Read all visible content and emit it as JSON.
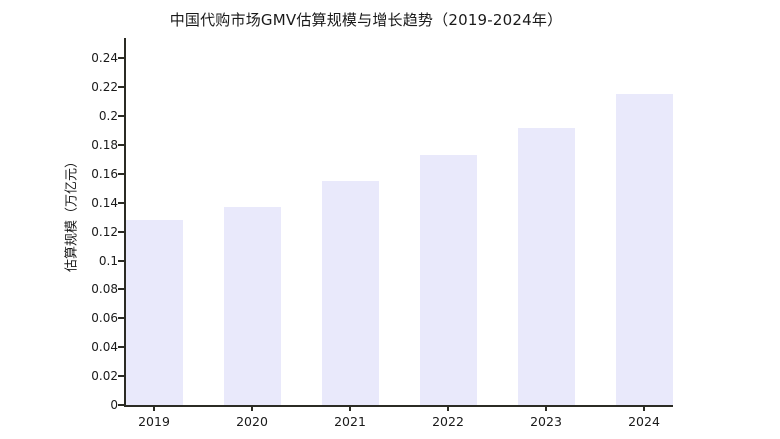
{
  "chart_data": {
    "type": "bar",
    "title": "中国代购市场GMV估算规模与增长趋势（2019-2024年）",
    "ylabel": "估算规模（万亿元）",
    "xlabel": "",
    "categories": [
      "2019",
      "2020",
      "2021",
      "2022",
      "2023",
      "2024"
    ],
    "values": [
      0.128,
      0.137,
      0.155,
      0.173,
      0.192,
      0.215
    ],
    "y_ticks": [
      "0",
      "0.02",
      "0.04",
      "0.06",
      "0.08",
      "0.1",
      "0.12",
      "0.14",
      "0.16",
      "0.18",
      "0.2",
      "0.22",
      "0.24"
    ],
    "ylim": [
      0,
      0.254
    ],
    "grid": false,
    "legend": false,
    "bar_color": "#e9e9fb",
    "axis_color": "#2b2b24",
    "text_color": "#1a1a1a",
    "background_color": "#ffffff"
  }
}
